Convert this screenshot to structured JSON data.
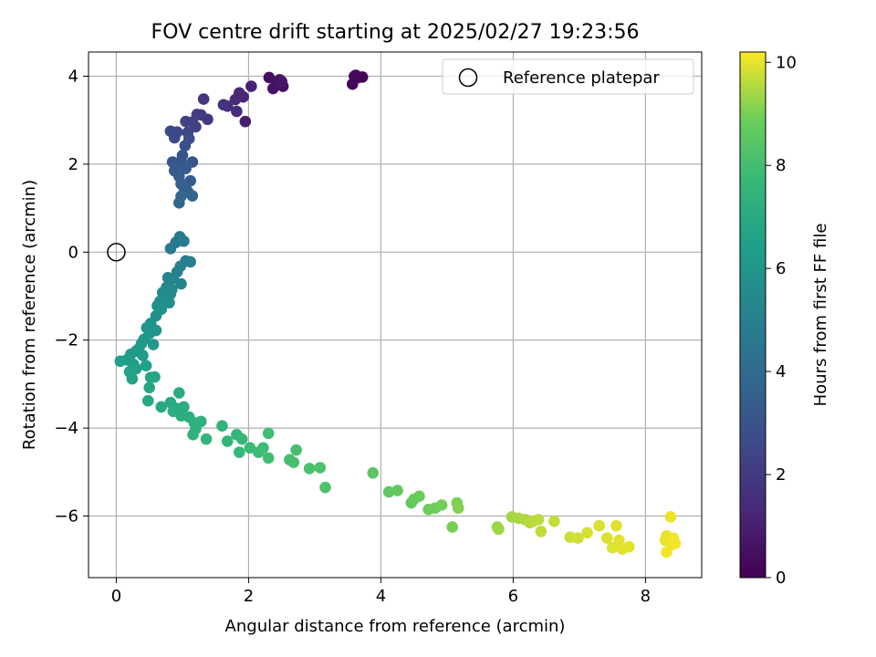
{
  "chart_data": {
    "type": "scatter",
    "title": "FOV centre drift starting at 2025/02/27 19:23:56",
    "xlabel": "Angular distance from reference (arcmin)",
    "ylabel": "Rotation from reference (arcmin)",
    "xlim": [
      -0.42,
      8.85
    ],
    "ylim": [
      -7.4,
      4.55
    ],
    "xticks": [
      0,
      2,
      4,
      6,
      8
    ],
    "yticks": [
      -6,
      -4,
      -2,
      0,
      2,
      4
    ],
    "xtick_labels": [
      "0",
      "2",
      "4",
      "6",
      "8"
    ],
    "ytick_labels": [
      "−6",
      "−4",
      "−2",
      "0",
      "2",
      "4"
    ],
    "grid": true,
    "legend": {
      "placement": "top-right",
      "entries": [
        "Reference platepar"
      ]
    },
    "reference_point": {
      "x": 0,
      "y": 0,
      "label": "Reference platepar"
    },
    "colorbar": {
      "label": "Hours from first FF file",
      "colormap": "viridis",
      "range": [
        0,
        10.2
      ],
      "ticks": [
        0,
        2,
        4,
        6,
        8,
        10
      ],
      "tick_labels": [
        "0",
        "2",
        "4",
        "6",
        "8",
        "10"
      ]
    },
    "series": [
      {
        "points": [
          [
            3.6,
            4.0,
            0.05
          ],
          [
            3.66,
            3.97,
            0.1
          ],
          [
            3.72,
            3.98,
            0.15
          ],
          [
            3.57,
            3.82,
            0.2
          ],
          [
            3.62,
            4.02,
            0.25
          ],
          [
            2.31,
            3.97,
            0.45
          ],
          [
            2.47,
            3.92,
            0.5
          ],
          [
            2.52,
            3.77,
            0.55
          ],
          [
            2.37,
            3.72,
            0.6
          ],
          [
            2.42,
            3.85,
            0.65
          ],
          [
            2.5,
            3.88,
            0.75
          ],
          [
            1.95,
            2.97,
            1.0
          ],
          [
            2.04,
            3.77,
            1.1
          ],
          [
            1.92,
            3.53,
            1.2
          ],
          [
            1.86,
            3.62,
            1.3
          ],
          [
            1.8,
            3.47,
            1.4
          ],
          [
            1.82,
            3.2,
            1.5
          ],
          [
            1.68,
            3.32,
            1.6
          ],
          [
            1.62,
            3.35,
            1.7
          ],
          [
            1.32,
            3.48,
            1.8
          ],
          [
            1.38,
            3.02,
            1.9
          ],
          [
            1.28,
            3.12,
            2.0
          ],
          [
            1.22,
            3.13,
            2.1
          ],
          [
            1.15,
            2.96,
            2.2
          ],
          [
            1.2,
            2.85,
            2.3
          ],
          [
            1.05,
            2.97,
            2.35
          ],
          [
            1.08,
            2.72,
            2.4
          ],
          [
            0.92,
            2.73,
            2.5
          ],
          [
            0.82,
            2.75,
            2.55
          ],
          [
            0.88,
            2.6,
            2.6
          ],
          [
            1.1,
            2.58,
            2.7
          ],
          [
            1.04,
            2.42,
            2.8
          ],
          [
            1.0,
            2.2,
            2.9
          ],
          [
            0.98,
            2.07,
            3.0
          ],
          [
            0.85,
            2.05,
            3.05
          ],
          [
            1.15,
            2.05,
            3.1
          ],
          [
            0.92,
            1.97,
            3.15
          ],
          [
            0.88,
            1.85,
            3.2
          ],
          [
            1.05,
            1.9,
            3.3
          ],
          [
            0.95,
            1.72,
            3.35
          ],
          [
            1.12,
            1.62,
            3.4
          ],
          [
            0.98,
            1.55,
            3.5
          ],
          [
            1.02,
            1.48,
            3.55
          ],
          [
            1.08,
            1.38,
            3.6
          ],
          [
            1.15,
            1.28,
            3.7
          ],
          [
            0.98,
            1.27,
            3.75
          ],
          [
            0.95,
            1.12,
            3.8
          ],
          [
            0.9,
            0.22,
            4.5
          ],
          [
            0.96,
            0.35,
            4.6
          ],
          [
            0.82,
            0.08,
            4.7
          ],
          [
            1.02,
            0.25,
            4.75
          ],
          [
            1.05,
            -0.2,
            4.8
          ],
          [
            1.12,
            -0.22,
            4.9
          ],
          [
            0.97,
            -0.32,
            5.0
          ],
          [
            0.92,
            -0.45,
            5.05
          ],
          [
            0.78,
            -0.58,
            5.1
          ],
          [
            0.86,
            -0.6,
            5.2
          ],
          [
            0.98,
            -0.72,
            5.25
          ],
          [
            0.76,
            -0.8,
            5.3
          ],
          [
            0.84,
            -0.85,
            5.4
          ],
          [
            0.7,
            -0.92,
            5.45
          ],
          [
            0.82,
            -0.95,
            5.5
          ],
          [
            0.74,
            -1.05,
            5.55
          ],
          [
            0.66,
            -1.12,
            5.6
          ],
          [
            0.8,
            -1.15,
            5.65
          ],
          [
            0.62,
            -1.22,
            5.7
          ],
          [
            0.68,
            -1.3,
            5.75
          ],
          [
            0.6,
            -1.45,
            5.8
          ],
          [
            0.52,
            -1.62,
            5.85
          ],
          [
            0.46,
            -1.72,
            5.9
          ],
          [
            0.6,
            -1.78,
            5.95
          ],
          [
            0.5,
            -1.85,
            6.0
          ],
          [
            0.42,
            -1.98,
            6.05
          ],
          [
            0.38,
            -2.08,
            6.1
          ],
          [
            0.56,
            -2.1,
            6.12
          ],
          [
            0.34,
            -2.2,
            6.15
          ],
          [
            0.3,
            -2.25,
            6.2
          ],
          [
            0.22,
            -2.32,
            6.25
          ],
          [
            0.4,
            -2.35,
            6.3
          ],
          [
            0.16,
            -2.45,
            6.35
          ],
          [
            0.06,
            -2.48,
            6.4
          ],
          [
            0.26,
            -2.55,
            6.45
          ],
          [
            0.3,
            -2.65,
            6.5
          ],
          [
            0.45,
            -2.58,
            6.55
          ],
          [
            0.2,
            -2.72,
            6.6
          ],
          [
            0.24,
            -2.88,
            6.65
          ],
          [
            0.52,
            -2.85,
            6.7
          ],
          [
            0.58,
            -2.84,
            6.75
          ],
          [
            0.5,
            -3.08,
            6.8
          ],
          [
            0.48,
            -3.38,
            6.85
          ],
          [
            0.68,
            -3.52,
            6.9
          ],
          [
            0.82,
            -3.42,
            6.95
          ],
          [
            0.9,
            -3.55,
            7.0
          ],
          [
            0.95,
            -3.2,
            7.05
          ],
          [
            1.02,
            -3.52,
            7.1
          ],
          [
            0.86,
            -3.62,
            7.12
          ],
          [
            0.98,
            -3.72,
            7.15
          ],
          [
            1.1,
            -3.75,
            7.2
          ],
          [
            1.18,
            -3.88,
            7.25
          ],
          [
            1.28,
            -3.85,
            7.3
          ],
          [
            1.2,
            -4.02,
            7.35
          ],
          [
            1.16,
            -4.15,
            7.4
          ],
          [
            1.36,
            -4.25,
            7.45
          ],
          [
            1.6,
            -3.95,
            7.5
          ],
          [
            1.68,
            -4.3,
            7.55
          ],
          [
            1.82,
            -4.15,
            7.6
          ],
          [
            1.86,
            -4.55,
            7.65
          ],
          [
            1.9,
            -4.25,
            7.7
          ],
          [
            2.02,
            -4.45,
            7.75
          ],
          [
            2.15,
            -4.55,
            7.8
          ],
          [
            2.22,
            -4.45,
            7.85
          ],
          [
            2.3,
            -4.12,
            7.9
          ],
          [
            2.3,
            -4.68,
            7.95
          ],
          [
            2.62,
            -4.72,
            8.0
          ],
          [
            2.72,
            -4.5,
            8.05
          ],
          [
            2.68,
            -4.78,
            8.1
          ],
          [
            2.92,
            -4.92,
            8.15
          ],
          [
            3.08,
            -4.9,
            8.2
          ],
          [
            3.16,
            -5.35,
            8.25
          ],
          [
            3.88,
            -5.02,
            8.5
          ],
          [
            4.12,
            -5.45,
            8.6
          ],
          [
            4.25,
            -5.42,
            8.65
          ],
          [
            4.46,
            -5.7,
            8.7
          ],
          [
            4.5,
            -5.62,
            8.75
          ],
          [
            4.58,
            -5.55,
            8.8
          ],
          [
            4.72,
            -5.85,
            8.85
          ],
          [
            4.82,
            -5.82,
            8.9
          ],
          [
            4.92,
            -5.75,
            8.95
          ],
          [
            5.08,
            -6.25,
            9.0
          ],
          [
            5.15,
            -5.7,
            9.05
          ],
          [
            5.17,
            -5.82,
            9.1
          ],
          [
            5.76,
            -6.25,
            9.3
          ],
          [
            5.78,
            -6.3,
            9.35
          ],
          [
            5.98,
            -6.02,
            9.4
          ],
          [
            6.08,
            -6.05,
            9.45
          ],
          [
            6.18,
            -6.08,
            9.5
          ],
          [
            6.25,
            -6.15,
            9.55
          ],
          [
            6.3,
            -6.12,
            9.6
          ],
          [
            6.38,
            -6.08,
            9.62
          ],
          [
            6.42,
            -6.35,
            9.65
          ],
          [
            6.62,
            -6.12,
            9.7
          ],
          [
            6.86,
            -6.48,
            9.75
          ],
          [
            6.98,
            -6.5,
            9.8
          ],
          [
            7.12,
            -6.38,
            9.85
          ],
          [
            7.3,
            -6.22,
            9.88
          ],
          [
            7.42,
            -6.5,
            9.9
          ],
          [
            7.5,
            -6.72,
            9.92
          ],
          [
            7.56,
            -6.22,
            9.94
          ],
          [
            7.6,
            -6.55,
            9.95
          ],
          [
            7.65,
            -6.75,
            9.97
          ],
          [
            7.75,
            -6.7,
            9.98
          ],
          [
            8.32,
            -6.45,
            10.0
          ],
          [
            8.3,
            -6.55,
            10.02
          ],
          [
            8.38,
            -6.02,
            10.04
          ],
          [
            8.4,
            -6.65,
            10.06
          ],
          [
            8.42,
            -6.5,
            10.08
          ],
          [
            8.32,
            -6.82,
            10.1
          ],
          [
            8.45,
            -6.62,
            10.12
          ]
        ]
      }
    ]
  }
}
